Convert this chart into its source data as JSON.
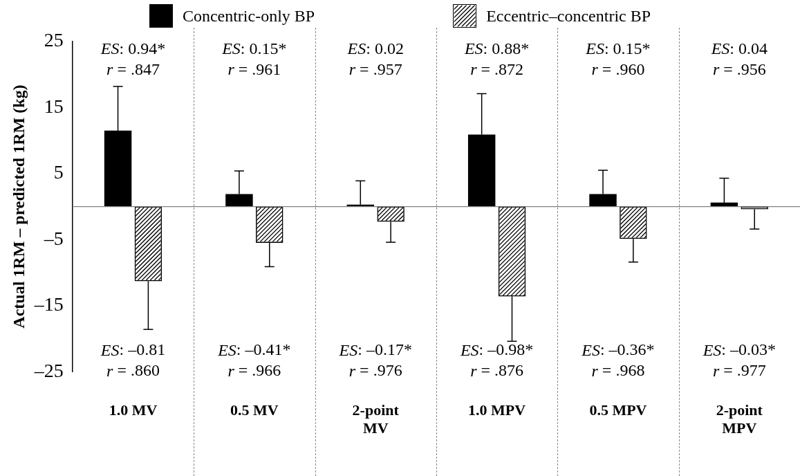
{
  "chart_data": {
    "type": "bar",
    "categories": [
      "1.0 MV",
      "0.5 MV",
      "2-point MV",
      "1.0 MPV",
      "0.5 MPV",
      "2-point MPV"
    ],
    "series": [
      {
        "name": "Concentric-only BP",
        "color": "#000000",
        "values": [
          11.5,
          1.9,
          0.3,
          10.9,
          1.9,
          0.6
        ],
        "errors": [
          [
            11.5,
            18.2
          ],
          [
            1.9,
            5.4
          ],
          [
            0.3,
            3.9
          ],
          [
            10.9,
            17.1
          ],
          [
            1.9,
            5.5
          ],
          [
            0.6,
            4.3
          ]
        ]
      },
      {
        "name": "Eccentric–concentric BP",
        "color": "#000000",
        "values": [
          -11.3,
          -5.5,
          -2.3,
          -13.6,
          -4.9,
          -0.4
        ],
        "errors": [
          [
            -18.6,
            -11.3
          ],
          [
            -9.1,
            -5.5
          ],
          [
            -5.4,
            -2.3
          ],
          [
            -20.4,
            -13.6
          ],
          [
            -8.4,
            -4.9
          ],
          [
            -3.4,
            -0.4
          ]
        ]
      }
    ],
    "ylabel": "Actual 1RM – predicted 1RM (kg)",
    "ylim": [
      -25,
      25
    ],
    "yticks": [
      {
        "value": -25,
        "label": "–25"
      },
      {
        "value": -15,
        "label": "–15"
      },
      {
        "value": -5,
        "label": "–5"
      },
      5,
      15,
      25
    ],
    "ref_lines": [
      {
        "axis": "y",
        "value": 0,
        "color": "#808080"
      }
    ],
    "annotations": [
      "ES: 0.94*\nr = .847",
      "ES: 0.15*\nr = .961",
      "ES: 0.02\nr = .957",
      "ES: 0.88*\nr = .872",
      "ES: 0.15*\nr = .960",
      "ES: 0.04\nr = .956",
      "ES: –0.81\nr = .860",
      "ES: –0.41*\nr = .966",
      "ES: –0.17*\nr = .976",
      "ES: –0.98*\nr = .876",
      "ES: –0.36*\nr = .968",
      "ES: –0.03*\nr = .977"
    ],
    "grid": false,
    "legend": "top"
  }
}
